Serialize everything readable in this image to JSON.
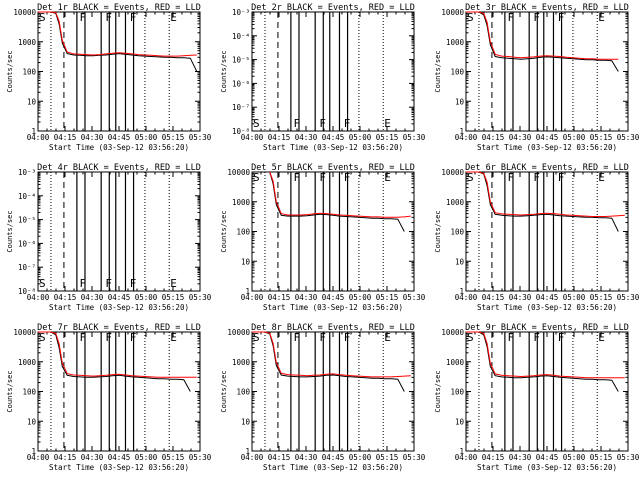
{
  "chart_data": [
    {
      "type": "line",
      "title": "Det 1r BLACK = Events, RED = LLD",
      "xlabel": "Start Time (03-Sep-12 03:56:20)",
      "ylabel": "Counts/sec",
      "has_data": true,
      "yscale": "log",
      "ylim": [
        1,
        10000
      ],
      "y_ticks": [
        "1",
        "10",
        "100",
        "1000",
        "10000"
      ],
      "x_ticks": [
        "04:00",
        "04:15",
        "04:30",
        "04:45",
        "05:00",
        "05:15",
        "05:30"
      ],
      "markers": [
        "S",
        "F",
        "F",
        "F",
        "E"
      ],
      "series": [
        {
          "color": "#000000",
          "x": [
            0,
            4,
            8,
            11,
            13,
            15,
            18,
            22,
            26,
            30,
            34,
            38,
            42,
            46,
            50,
            54,
            58,
            62,
            66,
            70,
            74,
            78,
            82,
            86,
            90,
            94,
            98
          ],
          "values": [
            10000,
            10000,
            10000,
            9000,
            4000,
            900,
            400,
            360,
            350,
            340,
            340,
            350,
            360,
            380,
            400,
            380,
            360,
            340,
            330,
            320,
            310,
            300,
            300,
            290,
            290,
            280,
            100
          ]
        },
        {
          "color": "#ff0000",
          "x": [
            0,
            4,
            8,
            11,
            13,
            15,
            18,
            22,
            26,
            30,
            34,
            38,
            42,
            46,
            50,
            54,
            58,
            62,
            66,
            70,
            74,
            78,
            82,
            86,
            90,
            94,
            98
          ],
          "values": [
            10000,
            10000,
            10000,
            9500,
            5000,
            1100,
            450,
            390,
            380,
            370,
            360,
            370,
            390,
            410,
            430,
            410,
            390,
            370,
            360,
            350,
            340,
            330,
            330,
            330,
            340,
            350,
            360
          ]
        }
      ]
    },
    {
      "type": "line",
      "title": "Det 2r BLACK = Events, RED = LLD",
      "xlabel": "Start Time (03-Sep-12 03:56:20)",
      "ylabel": "Counts/sec",
      "has_data": false,
      "yscale": "log",
      "y_ticks": [
        "10⁻⁸",
        "10⁻⁷",
        "10⁻⁶",
        "10⁻⁵",
        "10⁻⁴",
        "10⁻³"
      ],
      "x_ticks": [
        "04:00",
        "04:15",
        "04:30",
        "04:45",
        "05:00",
        "05:15",
        "05:30"
      ],
      "markers": [
        "S",
        "F",
        "F",
        "F",
        "E"
      ],
      "series": []
    },
    {
      "type": "line",
      "title": "Det 3r BLACK = Events, RED = LLD",
      "xlabel": "Start Time (03-Sep-12 03:56:20)",
      "ylabel": "Counts/sec",
      "has_data": true,
      "yscale": "log",
      "ylim": [
        1,
        10000
      ],
      "y_ticks": [
        "1",
        "10",
        "100",
        "1000",
        "10000"
      ],
      "x_ticks": [
        "04:00",
        "04:15",
        "04:30",
        "04:45",
        "05:00",
        "05:15",
        "05:30"
      ],
      "markers": [
        "S",
        "F",
        "F",
        "F",
        "E"
      ],
      "series": [
        {
          "color": "#000000",
          "x": [
            0,
            4,
            8,
            11,
            13,
            15,
            18,
            22,
            26,
            30,
            34,
            38,
            42,
            46,
            50,
            54,
            58,
            62,
            66,
            70,
            74,
            78,
            82,
            86,
            90,
            94
          ],
          "values": [
            10000,
            10000,
            10000,
            8000,
            3500,
            800,
            320,
            290,
            280,
            270,
            260,
            270,
            280,
            300,
            310,
            300,
            290,
            280,
            270,
            260,
            250,
            250,
            240,
            240,
            230,
            100
          ]
        },
        {
          "color": "#ff0000",
          "x": [
            0,
            4,
            8,
            11,
            13,
            15,
            18,
            22,
            26,
            30,
            34,
            38,
            42,
            46,
            50,
            54,
            58,
            62,
            66,
            70,
            74,
            78,
            82,
            86,
            90,
            94
          ],
          "values": [
            10000,
            10000,
            10000,
            9000,
            4500,
            1000,
            380,
            330,
            320,
            300,
            290,
            300,
            310,
            330,
            340,
            330,
            320,
            300,
            290,
            280,
            270,
            270,
            260,
            260,
            260,
            260
          ]
        }
      ]
    },
    {
      "type": "line",
      "title": "Det 4r BLACK = Events, RED = LLD",
      "xlabel": "Start Time (03-Sep-12 03:56:20)",
      "ylabel": "Counts/sec",
      "has_data": false,
      "yscale": "log",
      "y_ticks": [
        "10⁻⁸",
        "10⁻⁷",
        "10⁻⁶",
        "10⁻⁵",
        "10⁻⁴",
        "10⁻³"
      ],
      "x_ticks": [
        "04:00",
        "04:15",
        "04:30",
        "04:45",
        "05:00",
        "05:15",
        "05:30"
      ],
      "markers": [
        "S",
        "F",
        "F",
        "F",
        "E"
      ],
      "series": []
    },
    {
      "type": "line",
      "title": "Det 5r BLACK = Events, RED = LLD",
      "xlabel": "Start Time (03-Sep-12 03:56:20)",
      "ylabel": "Counts/sec",
      "has_data": true,
      "yscale": "log",
      "ylim": [
        1,
        10000
      ],
      "y_ticks": [
        "1",
        "10",
        "100",
        "1000",
        "10000"
      ],
      "x_ticks": [
        "04:00",
        "04:15",
        "04:30",
        "04:45",
        "05:00",
        "05:15",
        "05:30"
      ],
      "markers": [
        "S",
        "F",
        "F",
        "F",
        "E"
      ],
      "series": [
        {
          "color": "#000000",
          "x": [
            11,
            13,
            15,
            18,
            22,
            26,
            30,
            34,
            38,
            42,
            46,
            50,
            54,
            58,
            62,
            66,
            70,
            74,
            78,
            82,
            86,
            90,
            94
          ],
          "values": [
            10000,
            4000,
            800,
            350,
            330,
            330,
            330,
            340,
            360,
            380,
            370,
            350,
            330,
            320,
            310,
            300,
            290,
            280,
            280,
            270,
            270,
            260,
            100
          ]
        },
        {
          "color": "#ff0000",
          "x": [
            11,
            13,
            15,
            18,
            22,
            26,
            30,
            34,
            38,
            42,
            46,
            50,
            54,
            58,
            62,
            66,
            70,
            74,
            78,
            82,
            86,
            90,
            94,
            98
          ],
          "values": [
            10000,
            5000,
            1000,
            400,
            360,
            360,
            360,
            370,
            390,
            410,
            400,
            380,
            360,
            350,
            340,
            330,
            320,
            310,
            310,
            300,
            300,
            300,
            310,
            330
          ]
        }
      ]
    },
    {
      "type": "line",
      "title": "Det 6r BLACK = Events, RED = LLD",
      "xlabel": "Start Time (03-Sep-12 03:56:20)",
      "ylabel": "Counts/sec",
      "has_data": true,
      "yscale": "log",
      "ylim": [
        1,
        10000
      ],
      "y_ticks": [
        "1",
        "10",
        "100",
        "1000",
        "10000"
      ],
      "x_ticks": [
        "04:00",
        "04:15",
        "04:30",
        "04:45",
        "05:00",
        "05:15",
        "05:30"
      ],
      "markers": [
        "S",
        "F",
        "F",
        "F",
        "E"
      ],
      "series": [
        {
          "color": "#000000",
          "x": [
            0,
            4,
            8,
            11,
            13,
            15,
            18,
            22,
            26,
            30,
            34,
            38,
            42,
            46,
            50,
            54,
            58,
            62,
            66,
            70,
            74,
            78,
            82,
            86,
            90,
            94
          ],
          "values": [
            10000,
            10000,
            10000,
            8500,
            3500,
            800,
            380,
            350,
            340,
            330,
            330,
            340,
            350,
            370,
            380,
            360,
            340,
            330,
            320,
            310,
            300,
            300,
            290,
            290,
            280,
            100
          ]
        },
        {
          "color": "#ff0000",
          "x": [
            0,
            4,
            8,
            11,
            13,
            15,
            18,
            22,
            26,
            30,
            34,
            38,
            42,
            46,
            50,
            54,
            58,
            62,
            66,
            70,
            74,
            78,
            82,
            86,
            90,
            94,
            98
          ],
          "values": [
            10000,
            10000,
            10000,
            9000,
            4500,
            1000,
            430,
            390,
            380,
            370,
            360,
            370,
            380,
            400,
            410,
            400,
            380,
            360,
            350,
            340,
            330,
            320,
            320,
            320,
            330,
            340,
            350
          ]
        }
      ]
    },
    {
      "type": "line",
      "title": "Det 7r BLACK = Events, RED = LLD",
      "xlabel": "Start Time (03-Sep-12 03:56:20)",
      "ylabel": "Counts/sec",
      "has_data": true,
      "yscale": "log",
      "ylim": [
        1,
        10000
      ],
      "y_ticks": [
        "1",
        "10",
        "100",
        "1000",
        "10000"
      ],
      "x_ticks": [
        "04:00",
        "04:15",
        "04:30",
        "04:45",
        "05:00",
        "05:15",
        "05:30"
      ],
      "markers": [
        "S",
        "F",
        "F",
        "F",
        "E"
      ],
      "series": [
        {
          "color": "#000000",
          "x": [
            0,
            4,
            8,
            11,
            13,
            15,
            18,
            22,
            26,
            30,
            34,
            38,
            42,
            46,
            50,
            54,
            58,
            62,
            66,
            70,
            74,
            78,
            82,
            86,
            90,
            94
          ],
          "values": [
            10000,
            10000,
            10000,
            8000,
            3000,
            700,
            350,
            320,
            310,
            300,
            300,
            310,
            320,
            340,
            350,
            330,
            310,
            300,
            290,
            280,
            270,
            270,
            260,
            260,
            250,
            100
          ]
        },
        {
          "color": "#ff0000",
          "x": [
            0,
            4,
            8,
            11,
            13,
            15,
            18,
            22,
            26,
            30,
            34,
            38,
            42,
            46,
            50,
            54,
            58,
            62,
            66,
            70,
            74,
            78,
            82,
            86,
            90,
            94,
            98
          ],
          "values": [
            10000,
            10000,
            10000,
            9000,
            4000,
            900,
            400,
            360,
            350,
            340,
            330,
            340,
            350,
            370,
            380,
            360,
            340,
            330,
            320,
            310,
            300,
            300,
            300,
            300,
            300,
            300,
            300
          ]
        }
      ]
    },
    {
      "type": "line",
      "title": "Det 8r BLACK = Events, RED = LLD",
      "xlabel": "Start Time (03-Sep-12 03:56:20)",
      "ylabel": "Counts/sec",
      "has_data": true,
      "yscale": "log",
      "ylim": [
        1,
        10000
      ],
      "y_ticks": [
        "1",
        "10",
        "100",
        "1000",
        "10000"
      ],
      "x_ticks": [
        "04:00",
        "04:15",
        "04:30",
        "04:45",
        "05:00",
        "05:15",
        "05:30"
      ],
      "markers": [
        "S",
        "F",
        "F",
        "F",
        "E"
      ],
      "series": [
        {
          "color": "#000000",
          "x": [
            0,
            4,
            8,
            11,
            13,
            15,
            18,
            22,
            26,
            30,
            34,
            38,
            42,
            46,
            50,
            54,
            58,
            62,
            66,
            70,
            74,
            78,
            82,
            86,
            90,
            94
          ],
          "values": [
            10000,
            10000,
            10000,
            8500,
            3500,
            750,
            360,
            330,
            320,
            310,
            310,
            320,
            330,
            350,
            360,
            340,
            320,
            310,
            300,
            290,
            280,
            280,
            270,
            270,
            260,
            100
          ]
        },
        {
          "color": "#ff0000",
          "x": [
            0,
            4,
            8,
            11,
            13,
            15,
            18,
            22,
            26,
            30,
            34,
            38,
            42,
            46,
            50,
            54,
            58,
            62,
            66,
            70,
            74,
            78,
            82,
            86,
            90,
            94,
            98
          ],
          "values": [
            10000,
            10000,
            10000,
            9000,
            4200,
            950,
            410,
            370,
            360,
            350,
            340,
            350,
            360,
            380,
            390,
            370,
            350,
            340,
            330,
            320,
            310,
            310,
            310,
            310,
            320,
            330,
            340
          ]
        }
      ]
    },
    {
      "type": "line",
      "title": "Det 9r BLACK = Events, RED = LLD",
      "xlabel": "Start Time (03-Sep-12 03:56:20)",
      "ylabel": "Counts/sec",
      "has_data": true,
      "yscale": "log",
      "ylim": [
        1,
        10000
      ],
      "y_ticks": [
        "1",
        "10",
        "100",
        "1000",
        "10000"
      ],
      "x_ticks": [
        "04:00",
        "04:15",
        "04:30",
        "04:45",
        "05:00",
        "05:15",
        "05:30"
      ],
      "markers": [
        "S",
        "F",
        "F",
        "F",
        "E"
      ],
      "series": [
        {
          "color": "#000000",
          "x": [
            0,
            4,
            8,
            11,
            13,
            15,
            18,
            22,
            26,
            30,
            34,
            38,
            42,
            46,
            50,
            54,
            58,
            62,
            66,
            70,
            74,
            78,
            82,
            86,
            90,
            94
          ],
          "values": [
            10000,
            10000,
            10000,
            8000,
            3200,
            700,
            340,
            310,
            300,
            290,
            290,
            300,
            310,
            330,
            340,
            320,
            300,
            290,
            280,
            270,
            260,
            260,
            250,
            250,
            240,
            100
          ]
        },
        {
          "color": "#ff0000",
          "x": [
            0,
            4,
            8,
            11,
            13,
            15,
            18,
            22,
            26,
            30,
            34,
            38,
            42,
            46,
            50,
            54,
            58,
            62,
            66,
            70,
            74,
            78,
            82,
            86,
            90,
            94,
            98
          ],
          "values": [
            10000,
            10000,
            10000,
            9000,
            4000,
            900,
            390,
            350,
            340,
            330,
            320,
            330,
            340,
            360,
            370,
            350,
            330,
            320,
            310,
            300,
            290,
            290,
            290,
            290,
            290,
            290,
            290
          ]
        }
      ]
    }
  ]
}
